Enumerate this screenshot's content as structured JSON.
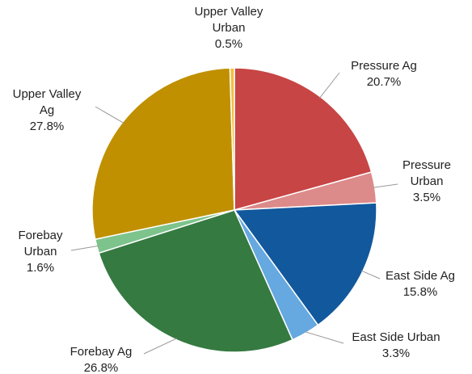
{
  "chart_data": {
    "type": "pie",
    "categories": [
      "Pressure Ag",
      "Pressure Urban",
      "East Side Ag",
      "East Side Urban",
      "Forebay Ag",
      "Forebay Urban",
      "Upper Valley Ag",
      "Upper Valley Urban"
    ],
    "values": [
      20.7,
      3.5,
      15.8,
      3.3,
      26.8,
      1.6,
      27.8,
      0.5
    ],
    "value_labels": [
      "20.7%",
      "3.5%",
      "15.8%",
      "3.3%",
      "26.8%",
      "1.6%",
      "27.8%",
      "0.5%"
    ],
    "colors": [
      "#c84545",
      "#dc8a8a",
      "#12589c",
      "#66a8e0",
      "#357a41",
      "#7dc38c",
      "#c09000",
      "#f0c040"
    ]
  }
}
